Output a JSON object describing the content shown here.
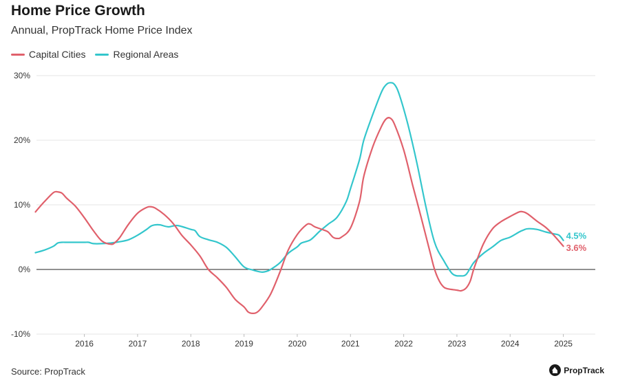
{
  "header": {
    "title": "Home Price Growth",
    "subtitle": "Annual, PropTrack Home Price Index"
  },
  "footer": {
    "source": "Source: PropTrack",
    "logo_text": "PropTrack",
    "logo_icon": "house-icon"
  },
  "chart_data": {
    "type": "line",
    "title": "Home Price Growth",
    "subtitle": "Annual, PropTrack Home Price Index",
    "xlabel": "",
    "ylabel": "",
    "xlim": [
      2015.1,
      2025.6
    ],
    "ylim": [
      -10,
      30
    ],
    "y_ticks": [
      30,
      20,
      10,
      0,
      -10
    ],
    "y_tick_labels": [
      "30%",
      "20%",
      "10%",
      "0%",
      "-10%"
    ],
    "x_ticks": [
      2016,
      2017,
      2018,
      2019,
      2020,
      2021,
      2022,
      2023,
      2024,
      2025
    ],
    "x_tick_labels": [
      "2016",
      "2017",
      "2018",
      "2019",
      "2020",
      "2021",
      "2022",
      "2023",
      "2024",
      "2025"
    ],
    "grid": true,
    "legend": "top-left",
    "colors": {
      "capital": "#e0606b",
      "regional": "#33c6cc",
      "zero_line": "#222222",
      "grid": "#e6e6e6"
    },
    "series": [
      {
        "name": "Capital Cities",
        "color": "#e0606b",
        "end_label": "3.6%",
        "x": [
          2015.08,
          2015.25,
          2015.42,
          2015.5,
          2015.58,
          2015.67,
          2015.83,
          2016.0,
          2016.17,
          2016.33,
          2016.5,
          2016.58,
          2016.67,
          2016.83,
          2017.0,
          2017.17,
          2017.25,
          2017.33,
          2017.5,
          2017.67,
          2017.83,
          2018.0,
          2018.17,
          2018.33,
          2018.5,
          2018.67,
          2018.83,
          2019.0,
          2019.08,
          2019.17,
          2019.25,
          2019.33,
          2019.5,
          2019.67,
          2019.83,
          2020.0,
          2020.17,
          2020.25,
          2020.33,
          2020.5,
          2020.58,
          2020.67,
          2020.75,
          2020.83,
          2021.0,
          2021.17,
          2021.25,
          2021.42,
          2021.58,
          2021.67,
          2021.75,
          2021.83,
          2022.0,
          2022.17,
          2022.33,
          2022.5,
          2022.58,
          2022.67,
          2022.75,
          2022.83,
          2023.0,
          2023.08,
          2023.17,
          2023.25,
          2023.33,
          2023.5,
          2023.67,
          2023.83,
          2024.0,
          2024.17,
          2024.25,
          2024.33,
          2024.5,
          2024.67,
          2024.83,
          2025.0
        ],
        "y": [
          8.9,
          10.5,
          11.9,
          12.0,
          11.8,
          11.0,
          9.8,
          8.0,
          6.0,
          4.4,
          3.9,
          4.2,
          5.0,
          7.0,
          8.7,
          9.6,
          9.7,
          9.5,
          8.5,
          7.1,
          5.3,
          3.8,
          2.1,
          0.0,
          -1.3,
          -2.8,
          -4.6,
          -5.8,
          -6.6,
          -6.8,
          -6.6,
          -5.9,
          -3.8,
          -0.5,
          3.0,
          5.4,
          6.9,
          7.0,
          6.6,
          6.1,
          5.8,
          5.0,
          4.8,
          5.0,
          6.4,
          10.5,
          14.4,
          19.0,
          22.1,
          23.3,
          23.4,
          22.4,
          18.5,
          13.0,
          8.0,
          2.5,
          0.0,
          -1.8,
          -2.7,
          -3.0,
          -3.2,
          -3.3,
          -2.9,
          -1.8,
          0.4,
          4.0,
          6.3,
          7.4,
          8.2,
          8.9,
          8.9,
          8.6,
          7.5,
          6.5,
          5.2,
          3.6
        ]
      },
      {
        "name": "Regional Areas",
        "color": "#33c6cc",
        "end_label": "4.5%",
        "x": [
          2015.08,
          2015.25,
          2015.42,
          2015.5,
          2015.58,
          2015.67,
          2015.83,
          2016.0,
          2016.08,
          2016.17,
          2016.33,
          2016.5,
          2016.67,
          2016.83,
          2017.0,
          2017.17,
          2017.25,
          2017.33,
          2017.42,
          2017.58,
          2017.75,
          2018.0,
          2018.08,
          2018.17,
          2018.33,
          2018.5,
          2018.67,
          2018.83,
          2019.0,
          2019.17,
          2019.33,
          2019.42,
          2019.5,
          2019.67,
          2019.83,
          2020.0,
          2020.08,
          2020.25,
          2020.42,
          2020.58,
          2020.75,
          2020.92,
          2021.0,
          2021.17,
          2021.25,
          2021.42,
          2021.58,
          2021.67,
          2021.75,
          2021.83,
          2021.92,
          2022.08,
          2022.25,
          2022.42,
          2022.58,
          2022.75,
          2022.92,
          2023.08,
          2023.17,
          2023.25,
          2023.33,
          2023.5,
          2023.67,
          2023.83,
          2024.0,
          2024.17,
          2024.25,
          2024.33,
          2024.5,
          2024.67,
          2024.83,
          2024.92,
          2025.0
        ],
        "y": [
          2.6,
          3.0,
          3.6,
          4.1,
          4.2,
          4.2,
          4.2,
          4.2,
          4.2,
          4.0,
          4.0,
          4.1,
          4.3,
          4.6,
          5.3,
          6.2,
          6.7,
          6.9,
          6.9,
          6.6,
          6.8,
          6.2,
          6.0,
          5.1,
          4.6,
          4.2,
          3.4,
          2.0,
          0.4,
          -0.1,
          -0.4,
          -0.3,
          0.0,
          1.0,
          2.5,
          3.5,
          4.1,
          4.6,
          5.9,
          7.0,
          8.1,
          10.5,
          12.5,
          17.0,
          20.0,
          24.0,
          27.4,
          28.6,
          28.9,
          28.6,
          27.0,
          22.4,
          16.4,
          9.6,
          4.2,
          1.4,
          -0.7,
          -1.0,
          -0.8,
          0.2,
          1.2,
          2.5,
          3.5,
          4.5,
          5.0,
          5.8,
          6.1,
          6.3,
          6.2,
          5.8,
          5.5,
          5.3,
          4.5
        ]
      }
    ]
  }
}
